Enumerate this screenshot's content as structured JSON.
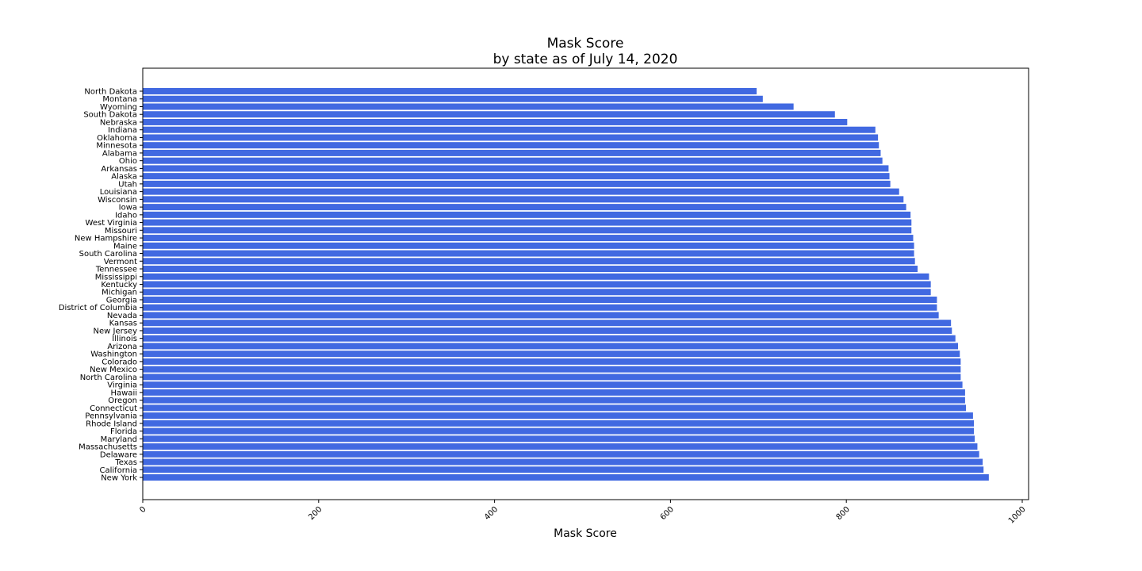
{
  "chart_data": {
    "type": "bar",
    "orientation": "horizontal",
    "title": "Mask Score",
    "subtitle": "by state as of July 14, 2020",
    "xlabel": "Mask Score",
    "ylabel": "",
    "xlim": [
      0,
      1000
    ],
    "xticks": [
      0,
      200,
      400,
      600,
      800,
      1000
    ],
    "grid": false,
    "bar_color": "#4169E1",
    "categories": [
      "North Dakota",
      "Montana",
      "Wyoming",
      "South Dakota",
      "Nebraska",
      "Indiana",
      "Oklahoma",
      "Minnesota",
      "Alabama",
      "Ohio",
      "Arkansas",
      "Alaska",
      "Utah",
      "Louisiana",
      "Wisconsin",
      "Iowa",
      "Idaho",
      "West Virginia",
      "Missouri",
      "New Hampshire",
      "Maine",
      "South Carolina",
      "Vermont",
      "Tennessee",
      "Mississippi",
      "Kentucky",
      "Michigan",
      "Georgia",
      "District of Columbia",
      "Nevada",
      "Kansas",
      "New Jersey",
      "Illinois",
      "Arizona",
      "Washington",
      "Colorado",
      "New Mexico",
      "North Carolina",
      "Virginia",
      "Hawaii",
      "Oregon",
      "Connecticut",
      "Pennsylvania",
      "Rhode Island",
      "Florida",
      "Maryland",
      "Massachusetts",
      "Delaware",
      "Texas",
      "California",
      "New York"
    ],
    "values": [
      698,
      705,
      740,
      787,
      801,
      833,
      836,
      837,
      839,
      841,
      848,
      849,
      850,
      860,
      865,
      868,
      873,
      874,
      874,
      876,
      877,
      877,
      878,
      881,
      894,
      896,
      896,
      903,
      903,
      905,
      919,
      920,
      924,
      927,
      929,
      930,
      930,
      930,
      932,
      935,
      935,
      936,
      944,
      945,
      945,
      946,
      949,
      951,
      955,
      956,
      962
    ]
  }
}
